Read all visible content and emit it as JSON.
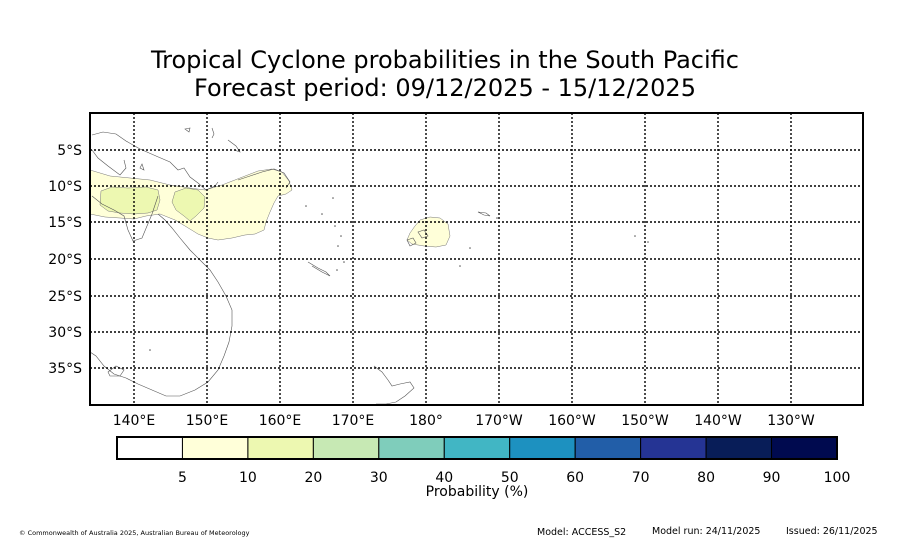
{
  "title": {
    "line1": "Tropical Cyclone probabilities in the South Pacific",
    "line2": "Forecast period: 09/12/2025 - 15/12/2025"
  },
  "map": {
    "lat_labels": [
      "5°S",
      "10°S",
      "15°S",
      "20°S",
      "25°S",
      "30°S",
      "35°S"
    ],
    "lon_labels": [
      "140°E",
      "150°E",
      "160°E",
      "170°E",
      "180°",
      "170°W",
      "160°W",
      "150°W",
      "140°W",
      "130°W"
    ]
  },
  "colorbar": {
    "label": "Probability (%)",
    "ticks": [
      "5",
      "10",
      "20",
      "30",
      "40",
      "50",
      "60",
      "70",
      "80",
      "90",
      "100"
    ],
    "colors": [
      "#ffffff",
      "#ffffd9",
      "#edf8b1",
      "#c7e9b4",
      "#7fcdbb",
      "#41b6c4",
      "#1d91c0",
      "#225ea8",
      "#253494",
      "#081d58",
      "#000a4f"
    ]
  },
  "footer": {
    "copyright": "© Commonwealth of Australia 2025, Australian Bureau of Meteorology",
    "model": "Model: ACCESS_S2",
    "model_run": "Model run: 24/11/2025",
    "issued": "Issued: 26/11/2025"
  }
}
